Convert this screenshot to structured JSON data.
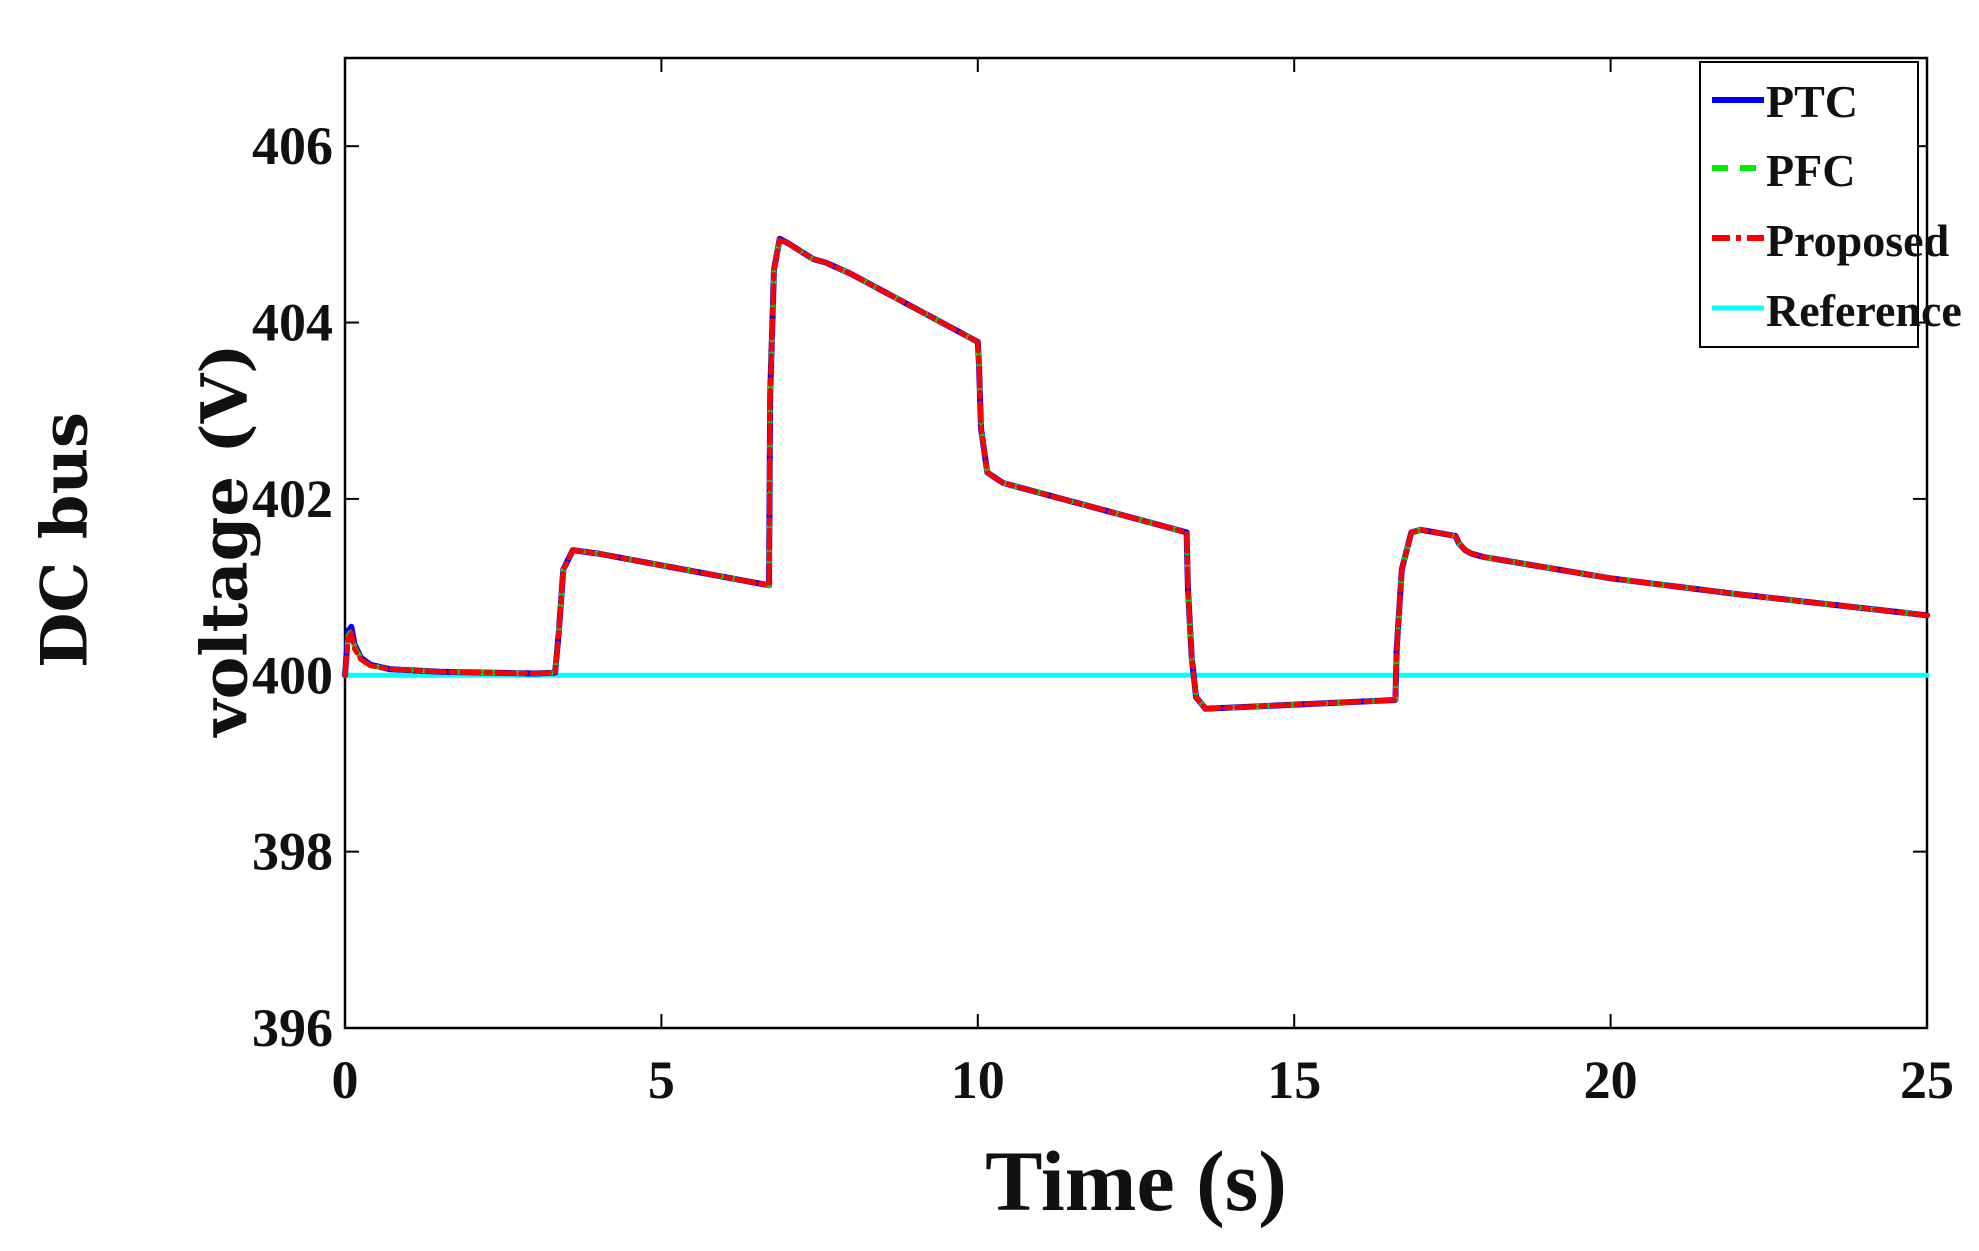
{
  "chart_data": {
    "type": "line",
    "title": "",
    "xlabel": "Time (s)",
    "ylabel_line1": "DC bus",
    "ylabel_line2": "voltage (V)",
    "xlim": [
      0,
      25
    ],
    "ylim": [
      396,
      407
    ],
    "xticks": [
      0,
      5,
      10,
      15,
      20,
      25
    ],
    "yticks": [
      396,
      398,
      400,
      402,
      404,
      406
    ],
    "grid": false,
    "legend_position": "top-right",
    "series": [
      {
        "name": "PTC",
        "color": "#0000ff",
        "style": "solid",
        "x": [
          0,
          0.05,
          0.1,
          0.15,
          0.25,
          0.4,
          0.7,
          1.5,
          3.0,
          3.32,
          3.38,
          3.45,
          3.6,
          4.0,
          6.7,
          6.72,
          6.78,
          6.87,
          7.0,
          7.4,
          7.6,
          8.0,
          10.0,
          10.02,
          10.05,
          10.15,
          10.4,
          13.3,
          13.32,
          13.38,
          13.45,
          13.6,
          16.6,
          16.62,
          16.7,
          16.85,
          17.0,
          17.55,
          17.6,
          17.7,
          17.8,
          18.0,
          20.0,
          22.0,
          25.0
        ],
        "y": [
          400.0,
          400.5,
          400.55,
          400.35,
          400.2,
          400.12,
          400.07,
          400.04,
          400.02,
          400.03,
          400.5,
          401.2,
          401.42,
          401.38,
          401.02,
          403.2,
          404.6,
          404.95,
          404.9,
          404.72,
          404.68,
          404.55,
          403.78,
          403.5,
          402.8,
          402.3,
          402.18,
          401.62,
          401.0,
          400.2,
          399.75,
          399.62,
          399.72,
          400.3,
          401.2,
          401.62,
          401.65,
          401.58,
          401.5,
          401.42,
          401.38,
          401.34,
          401.1,
          400.92,
          400.68
        ]
      },
      {
        "name": "PFC",
        "color": "#00ee00",
        "style": "dashed",
        "x": [
          0,
          0.05,
          0.1,
          0.15,
          0.25,
          0.4,
          0.7,
          1.5,
          3.0,
          3.32,
          3.38,
          3.45,
          3.6,
          4.0,
          6.7,
          6.72,
          6.78,
          6.87,
          7.0,
          7.4,
          7.6,
          8.0,
          10.0,
          10.02,
          10.05,
          10.15,
          10.4,
          13.3,
          13.32,
          13.38,
          13.45,
          13.6,
          16.6,
          16.62,
          16.7,
          16.85,
          17.0,
          17.55,
          17.6,
          17.7,
          17.8,
          18.0,
          20.0,
          22.0,
          25.0
        ],
        "y": [
          400.0,
          400.45,
          400.5,
          400.32,
          400.19,
          400.11,
          400.07,
          400.04,
          400.02,
          400.03,
          400.5,
          401.2,
          401.42,
          401.38,
          401.02,
          403.2,
          404.6,
          404.95,
          404.9,
          404.72,
          404.68,
          404.55,
          403.78,
          403.5,
          402.8,
          402.3,
          402.18,
          401.62,
          401.0,
          400.2,
          399.75,
          399.62,
          399.72,
          400.3,
          401.2,
          401.62,
          401.65,
          401.58,
          401.5,
          401.42,
          401.38,
          401.34,
          401.1,
          400.92,
          400.68
        ]
      },
      {
        "name": "Proposed",
        "color": "#ff0000",
        "style": "dashdot",
        "x": [
          0,
          0.05,
          0.1,
          0.15,
          0.25,
          0.4,
          0.7,
          1.5,
          3.0,
          3.32,
          3.38,
          3.45,
          3.6,
          4.0,
          6.7,
          6.72,
          6.78,
          6.87,
          7.0,
          7.4,
          7.6,
          8.0,
          10.0,
          10.02,
          10.05,
          10.15,
          10.4,
          13.3,
          13.32,
          13.38,
          13.45,
          13.6,
          16.6,
          16.62,
          16.7,
          16.85,
          17.0,
          17.55,
          17.6,
          17.7,
          17.8,
          18.0,
          20.0,
          22.0,
          25.0
        ],
        "y": [
          400.0,
          400.42,
          400.48,
          400.3,
          400.18,
          400.11,
          400.07,
          400.04,
          400.02,
          400.03,
          400.5,
          401.2,
          401.42,
          401.38,
          401.02,
          403.2,
          404.6,
          404.95,
          404.9,
          404.72,
          404.68,
          404.55,
          403.78,
          403.5,
          402.8,
          402.3,
          402.18,
          401.62,
          401.0,
          400.2,
          399.75,
          399.62,
          399.72,
          400.3,
          401.2,
          401.62,
          401.65,
          401.58,
          401.5,
          401.42,
          401.38,
          401.34,
          401.1,
          400.92,
          400.68
        ]
      },
      {
        "name": "Reference",
        "color": "#00ffff",
        "style": "solid",
        "x": [
          0,
          25
        ],
        "y": [
          400,
          400
        ]
      }
    ]
  }
}
